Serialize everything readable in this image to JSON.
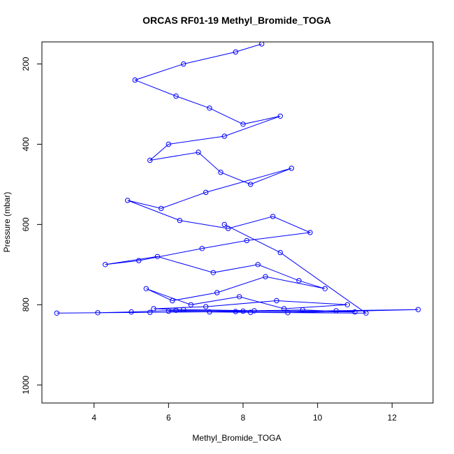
{
  "chart_data": {
    "type": "line",
    "title": "ORCAS RF01-19 Methyl_Bromide_TOGA",
    "xlabel": "Methyl_Bromide_TOGA",
    "ylabel": "Pressure (mbar)",
    "xlim": [
      2.6,
      13.1
    ],
    "ylim": [
      1045,
      145
    ],
    "y_reversed": true,
    "x_ticks": [
      4,
      6,
      8,
      10,
      12
    ],
    "y_ticks": [
      200,
      400,
      600,
      800,
      1000
    ],
    "grid": false,
    "legend": "none",
    "series_color": "#0000ff",
    "marker": "open-circle",
    "series": [
      {
        "x": [
          8.5,
          7.8,
          6.4,
          5.1,
          6.2,
          7.1,
          8.0,
          9.0,
          7.5,
          6.0,
          5.5,
          6.8,
          7.4,
          8.2,
          9.3,
          7.0,
          5.8,
          4.9,
          6.3,
          7.6,
          8.8,
          9.8,
          8.1,
          6.9,
          5.2,
          4.3,
          5.7,
          7.2,
          8.4,
          9.5,
          10.2,
          8.6,
          7.3,
          6.1,
          5.4,
          6.6,
          7.9,
          9.1,
          10.8,
          8.9,
          7.0,
          5.6,
          6.4,
          8.3,
          9.6,
          11.0,
          8.0,
          6.2,
          5.0,
          4.1,
          3.0,
          5.5,
          7.8,
          10.5,
          12.7,
          9.2,
          7.1,
          6.0,
          8.2,
          11.3,
          9.0,
          7.5
        ],
        "y": [
          150,
          170,
          200,
          240,
          280,
          310,
          350,
          330,
          380,
          400,
          440,
          420,
          470,
          500,
          460,
          520,
          560,
          540,
          590,
          610,
          580,
          620,
          640,
          660,
          690,
          700,
          680,
          720,
          700,
          740,
          760,
          730,
          770,
          790,
          760,
          800,
          780,
          810,
          800,
          790,
          805,
          810,
          812,
          815,
          813,
          818,
          816,
          814,
          818,
          820,
          821,
          819,
          817,
          815,
          812,
          820,
          818,
          816,
          819,
          821,
          670,
          600
        ]
      }
    ]
  }
}
